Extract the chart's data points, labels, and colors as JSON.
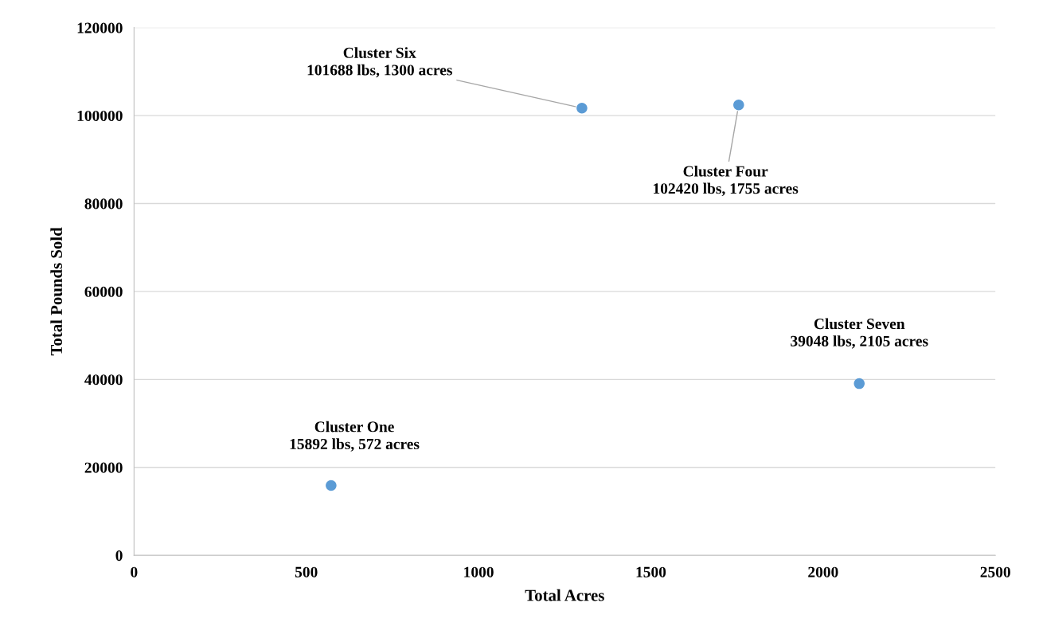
{
  "chart_data": {
    "type": "scatter",
    "xlabel": "Total Acres",
    "ylabel": "Total Pounds Sold",
    "x": [
      572,
      1300,
      1755,
      2105
    ],
    "series": [
      {
        "color": "#5b9bd5",
        "values": [
          15892,
          101688,
          102420,
          39048
        ]
      }
    ],
    "marker": "circle",
    "xlim": [
      0,
      2500
    ],
    "xticks": [
      0,
      500,
      1000,
      1500,
      2000,
      2500
    ],
    "ylim": [
      0,
      120000
    ],
    "yticks": [
      0,
      20000,
      40000,
      60000,
      80000,
      100000,
      120000
    ],
    "grid": "y",
    "annotations": [
      {
        "text": "Cluster One\n15892 lbs, 572 acres",
        "x": 572,
        "y": 15892
      },
      {
        "text": "Cluster Six\n101688 lbs, 1300 acres",
        "x": 1300,
        "y": 101688
      },
      {
        "text": "Cluster Four\n102420 lbs, 1755 acres",
        "x": 1755,
        "y": 102420
      },
      {
        "text": "Cluster Seven\n39048 lbs, 2105 acres",
        "x": 2105,
        "y": 39048
      }
    ]
  }
}
